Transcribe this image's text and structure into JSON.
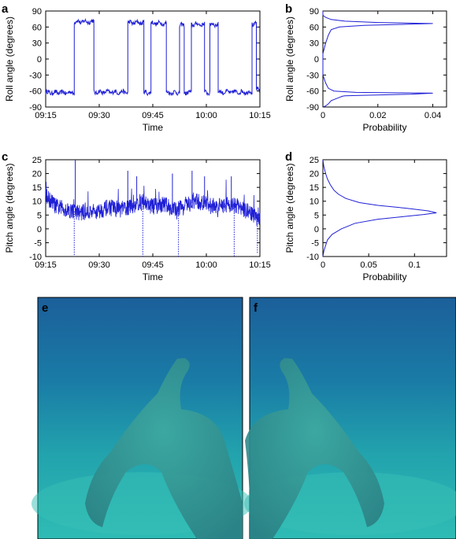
{
  "panels": [
    "a",
    "b",
    "c",
    "d",
    "e",
    "f"
  ],
  "chart_data": [
    {
      "id": "a",
      "type": "line",
      "xlabel": "Time",
      "ylabel": "Roll angle (degrees)",
      "xticks": [
        "09:15",
        "09:30",
        "09:45",
        "10:00",
        "10:15"
      ],
      "xlim": [
        0,
        60
      ],
      "yticks": [
        -90,
        -60,
        -30,
        0,
        30,
        60,
        90
      ],
      "ylim": [
        -90,
        90
      ],
      "grid": false,
      "color": "#1f1fd6",
      "segments": [
        {
          "t0": 0,
          "t1": 8.0,
          "level": -63
        },
        {
          "t0": 8.0,
          "t1": 13.5,
          "level": 70
        },
        {
          "t0": 13.5,
          "t1": 23.0,
          "level": -62
        },
        {
          "t0": 23.0,
          "t1": 27.5,
          "level": 68
        },
        {
          "t0": 27.5,
          "t1": 29.5,
          "level": -63
        },
        {
          "t0": 29.5,
          "t1": 33.8,
          "level": 67
        },
        {
          "t0": 33.8,
          "t1": 37.5,
          "level": -63
        },
        {
          "t0": 37.5,
          "t1": 38.8,
          "level": 63
        },
        {
          "t0": 38.8,
          "t1": 40.8,
          "level": -63
        },
        {
          "t0": 40.8,
          "t1": 44.5,
          "level": 65
        },
        {
          "t0": 44.5,
          "t1": 46.0,
          "level": -63
        },
        {
          "t0": 46.0,
          "t1": 48.3,
          "level": 65
        },
        {
          "t0": 48.3,
          "t1": 57.8,
          "level": -62
        },
        {
          "t0": 57.8,
          "t1": 59.0,
          "level": 66
        },
        {
          "t0": 59.0,
          "t1": 60.0,
          "level": -58
        }
      ]
    },
    {
      "id": "b",
      "type": "line",
      "xlabel": "Probability",
      "ylabel": "Roll angle (degrees)",
      "xticks": [
        0,
        0.02,
        0.04
      ],
      "xlim": [
        0,
        0.045
      ],
      "yticks": [
        -90,
        -60,
        -30,
        0,
        30,
        60,
        90
      ],
      "ylim": [
        -90,
        90
      ],
      "color": "#1f1fd6",
      "points": [
        [
          0.0,
          90
        ],
        [
          0.0,
          82
        ],
        [
          0.001,
          78
        ],
        [
          0.003,
          74
        ],
        [
          0.008,
          71
        ],
        [
          0.02,
          68.5
        ],
        [
          0.035,
          67
        ],
        [
          0.04,
          66.5
        ],
        [
          0.03,
          65
        ],
        [
          0.015,
          63
        ],
        [
          0.006,
          60
        ],
        [
          0.003,
          55
        ],
        [
          0.002,
          45
        ],
        [
          0.001,
          30
        ],
        [
          0.0,
          10
        ],
        [
          0.0,
          -30
        ],
        [
          0.001,
          -45
        ],
        [
          0.002,
          -55
        ],
        [
          0.004,
          -60
        ],
        [
          0.012,
          -62.5
        ],
        [
          0.03,
          -63.5
        ],
        [
          0.04,
          -64
        ],
        [
          0.032,
          -66
        ],
        [
          0.015,
          -68
        ],
        [
          0.008,
          -69
        ],
        [
          0.007,
          -70
        ],
        [
          0.006,
          -72
        ],
        [
          0.005,
          -74
        ],
        [
          0.003,
          -78
        ],
        [
          0.002,
          -84
        ],
        [
          0.001,
          -88
        ],
        [
          0.0,
          -90
        ]
      ]
    },
    {
      "id": "c",
      "type": "line",
      "xlabel": "Time",
      "ylabel": "Pitch angle (degrees)",
      "xticks": [
        "09:15",
        "09:30",
        "09:45",
        "10:00",
        "10:15"
      ],
      "xlim": [
        0,
        60
      ],
      "yticks": [
        -10,
        -5,
        0,
        5,
        10,
        15,
        20,
        25
      ],
      "ylim": [
        -10,
        25
      ],
      "color": "#1f1fd6",
      "baseline": [
        [
          0,
          12
        ],
        [
          3,
          8
        ],
        [
          6,
          7
        ],
        [
          9,
          6
        ],
        [
          12,
          6
        ],
        [
          15,
          6.5
        ],
        [
          18,
          8
        ],
        [
          21,
          7
        ],
        [
          24,
          8
        ],
        [
          27,
          10
        ],
        [
          30,
          8
        ],
        [
          33,
          9
        ],
        [
          36,
          7
        ],
        [
          39,
          8
        ],
        [
          42,
          10
        ],
        [
          45,
          9
        ],
        [
          48,
          8
        ],
        [
          51,
          9
        ],
        [
          54,
          8
        ],
        [
          57,
          6
        ],
        [
          60,
          3
        ]
      ],
      "spikes_up": [
        [
          8.3,
          25
        ],
        [
          23.0,
          21
        ],
        [
          25.5,
          19
        ],
        [
          35.5,
          20
        ],
        [
          41.0,
          21
        ],
        [
          44.5,
          19
        ],
        [
          52.0,
          19
        ]
      ],
      "spikes_down": [
        [
          8.0,
          -10
        ],
        [
          27.2,
          -10
        ],
        [
          37.2,
          -10
        ],
        [
          52.8,
          -10
        ],
        [
          59.3,
          -9
        ]
      ]
    },
    {
      "id": "d",
      "type": "line",
      "xlabel": "Probability",
      "ylabel": "Pitch angle (degrees)",
      "xticks": [
        0,
        0.05,
        0.1
      ],
      "xlim": [
        0,
        0.135
      ],
      "yticks": [
        -10,
        -5,
        0,
        5,
        10,
        15,
        20,
        25
      ],
      "ylim": [
        -10,
        25
      ],
      "color": "#1f1fd6",
      "points": [
        [
          0.0,
          -10
        ],
        [
          0.001,
          -8
        ],
        [
          0.003,
          -6
        ],
        [
          0.005,
          -4
        ],
        [
          0.01,
          -2
        ],
        [
          0.02,
          0
        ],
        [
          0.035,
          2
        ],
        [
          0.06,
          3.5
        ],
        [
          0.09,
          4.5
        ],
        [
          0.11,
          5.2
        ],
        [
          0.124,
          5.8
        ],
        [
          0.115,
          6.5
        ],
        [
          0.09,
          7.5
        ],
        [
          0.06,
          8.5
        ],
        [
          0.04,
          9.5
        ],
        [
          0.025,
          11
        ],
        [
          0.017,
          12.5
        ],
        [
          0.012,
          14
        ],
        [
          0.008,
          16
        ],
        [
          0.005,
          18
        ],
        [
          0.003,
          20
        ],
        [
          0.001,
          22.5
        ],
        [
          0.0,
          25
        ]
      ]
    }
  ]
}
